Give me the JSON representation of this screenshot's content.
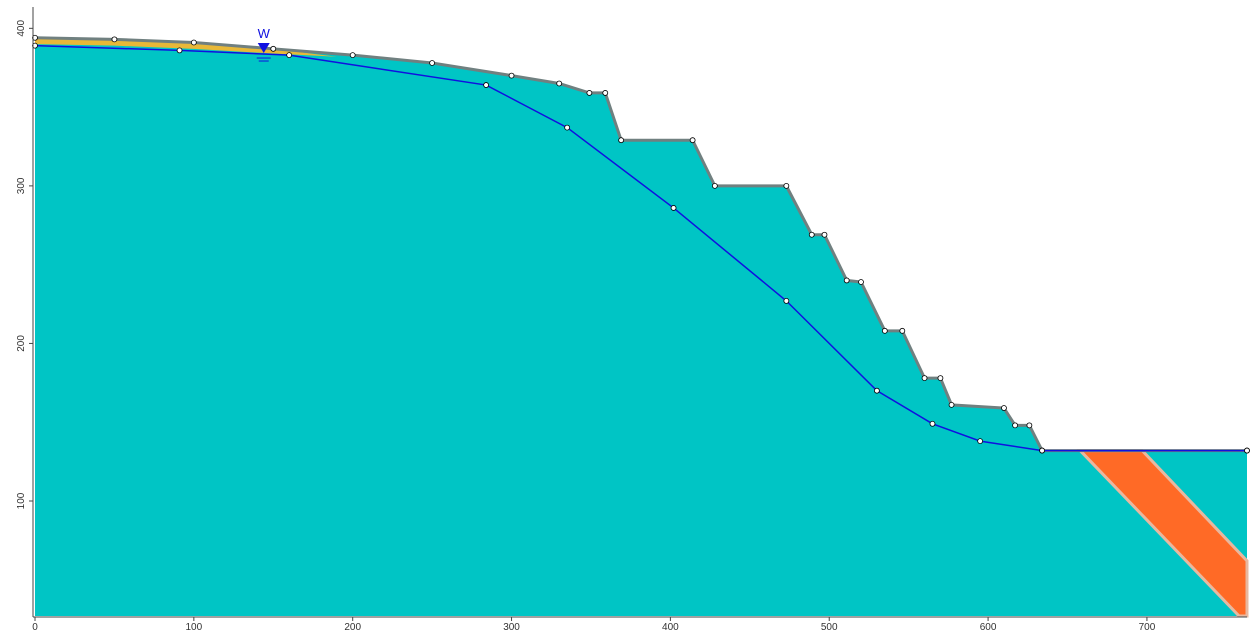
{
  "chart_data": {
    "type": "section",
    "xlim": [
      0,
      763
    ],
    "ylim": [
      27,
      411
    ],
    "xticks": [
      0,
      100,
      200,
      300,
      400,
      500,
      600,
      700
    ],
    "yticks": [
      100,
      200,
      300,
      400
    ],
    "surface": {
      "x": [
        0,
        50,
        100,
        150,
        200,
        250,
        300,
        330,
        349,
        359,
        369,
        414,
        428,
        473,
        489,
        497,
        511,
        520,
        535,
        546,
        560,
        570,
        577,
        610,
        617,
        626,
        634,
        763
      ],
      "y": [
        394,
        393,
        391,
        387,
        383,
        378,
        370,
        365,
        359,
        359,
        329,
        329,
        300,
        300,
        269,
        269,
        240,
        239,
        208,
        208,
        178,
        178,
        161,
        159,
        148,
        148,
        132,
        132
      ],
      "color": "#00c5c5"
    },
    "upper_layer": {
      "x": [
        0,
        50,
        100,
        150,
        190
      ],
      "top": [
        394,
        393,
        391,
        387,
        382
      ],
      "bottom": [
        390,
        389,
        387,
        384,
        382
      ],
      "color": "#e8b838"
    },
    "water_table": {
      "label": "W",
      "label_x": 144,
      "color": "#1010e0",
      "x": [
        0,
        91,
        160,
        284,
        335,
        402,
        473,
        530,
        565,
        595,
        634,
        763
      ],
      "y": [
        389,
        386,
        383,
        364,
        337,
        286,
        227,
        170,
        149,
        138,
        132,
        132
      ]
    },
    "weak_band": {
      "x": [
        658,
        697,
        763,
        763,
        758
      ],
      "y": [
        132,
        132,
        62,
        27,
        27
      ],
      "color": "#ff6a26"
    }
  }
}
